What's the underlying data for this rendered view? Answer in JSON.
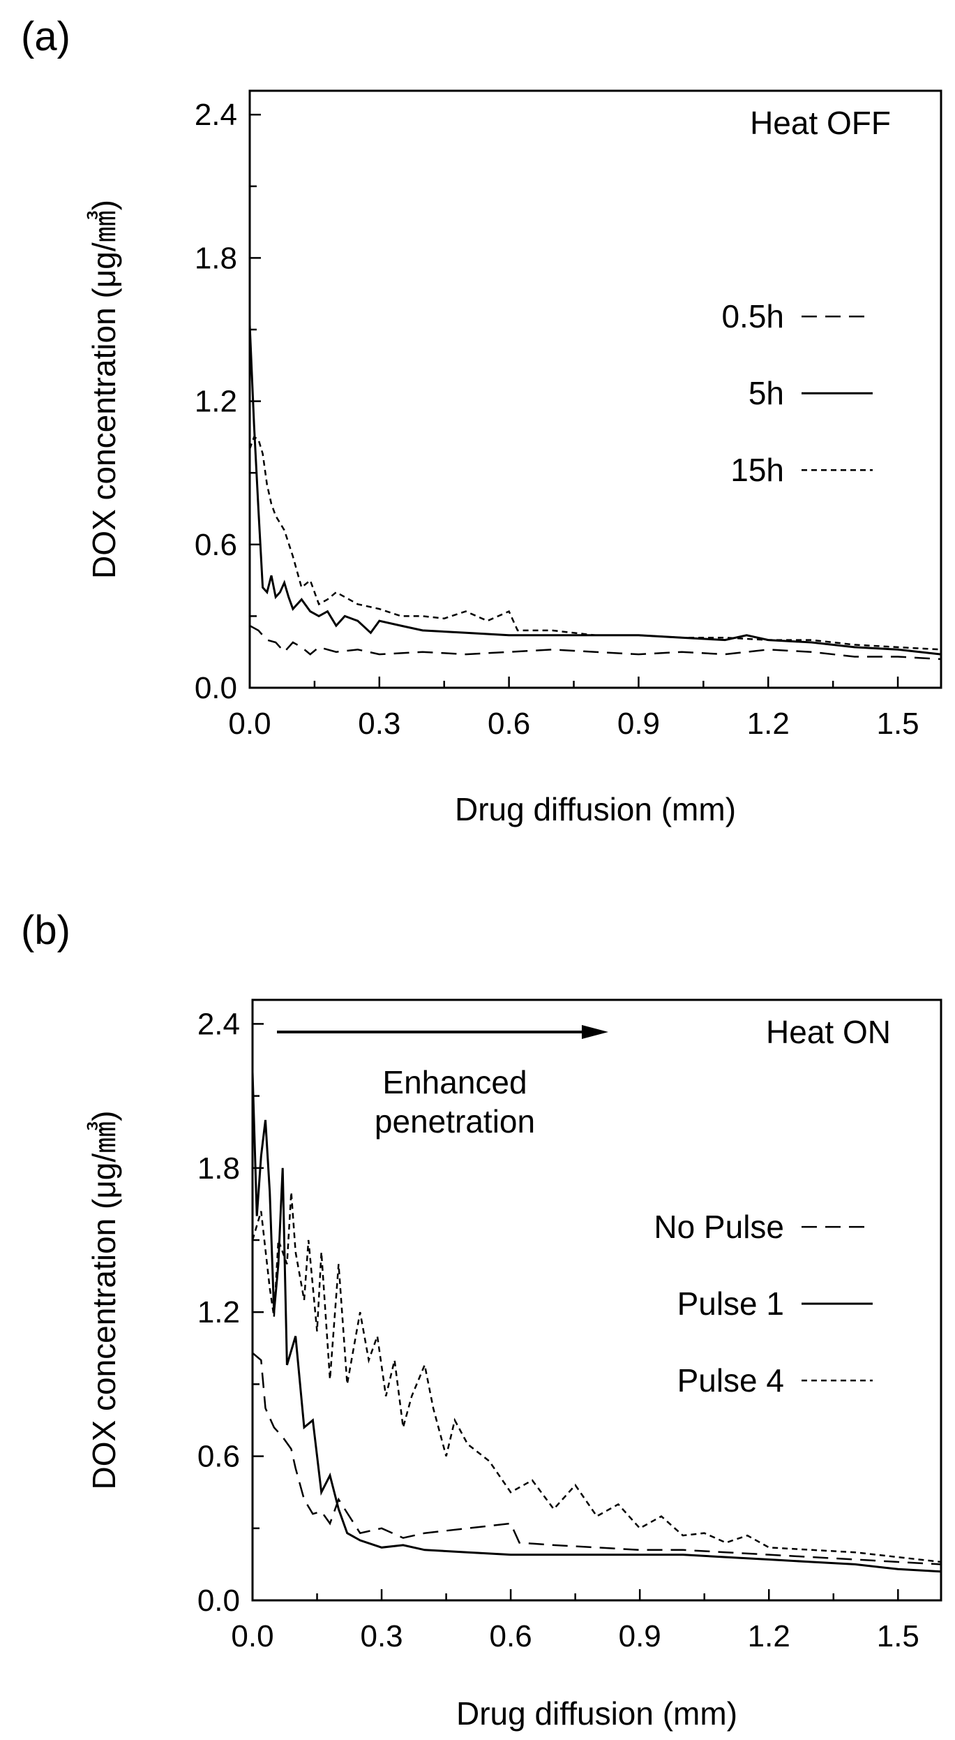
{
  "chart_data": [
    {
      "type": "line",
      "panel_label": "(a)",
      "annotation": "Heat OFF",
      "xlabel": "Drug diffusion (mm)",
      "ylabel": "DOX concentration (μg/㎣)",
      "xlim": [
        0,
        1.6
      ],
      "ylim": [
        0,
        2.5
      ],
      "xticks": [
        "0.0",
        "0.3",
        "0.6",
        "0.9",
        "1.2",
        "1.5"
      ],
      "yticks": [
        "0.0",
        "0.6",
        "1.2",
        "1.8",
        "2.4"
      ],
      "legend_position": "right",
      "series": [
        {
          "name": "0.5h",
          "style": "dashed",
          "x": [
            0,
            0.02,
            0.04,
            0.06,
            0.08,
            0.1,
            0.12,
            0.14,
            0.16,
            0.2,
            0.25,
            0.3,
            0.4,
            0.5,
            0.6,
            0.7,
            0.8,
            0.9,
            1.0,
            1.1,
            1.2,
            1.3,
            1.4,
            1.5,
            1.6
          ],
          "values": [
            0.26,
            0.24,
            0.2,
            0.19,
            0.15,
            0.19,
            0.17,
            0.14,
            0.17,
            0.15,
            0.16,
            0.14,
            0.15,
            0.14,
            0.15,
            0.16,
            0.15,
            0.14,
            0.15,
            0.14,
            0.16,
            0.15,
            0.13,
            0.13,
            0.12
          ]
        },
        {
          "name": "5h",
          "style": "solid",
          "x": [
            0,
            0.01,
            0.02,
            0.03,
            0.04,
            0.05,
            0.06,
            0.07,
            0.08,
            0.09,
            0.1,
            0.12,
            0.14,
            0.16,
            0.18,
            0.2,
            0.22,
            0.25,
            0.28,
            0.3,
            0.35,
            0.4,
            0.5,
            0.6,
            0.7,
            0.8,
            0.9,
            1.0,
            1.1,
            1.15,
            1.2,
            1.3,
            1.4,
            1.5,
            1.6
          ],
          "values": [
            1.52,
            1.1,
            0.75,
            0.42,
            0.4,
            0.47,
            0.38,
            0.4,
            0.44,
            0.38,
            0.33,
            0.37,
            0.32,
            0.3,
            0.32,
            0.26,
            0.3,
            0.28,
            0.23,
            0.28,
            0.26,
            0.24,
            0.23,
            0.22,
            0.22,
            0.22,
            0.22,
            0.21,
            0.2,
            0.22,
            0.2,
            0.19,
            0.17,
            0.16,
            0.14
          ]
        },
        {
          "name": "15h",
          "style": "dotted",
          "x": [
            0,
            0.01,
            0.02,
            0.03,
            0.04,
            0.05,
            0.06,
            0.08,
            0.1,
            0.12,
            0.14,
            0.16,
            0.18,
            0.2,
            0.25,
            0.3,
            0.35,
            0.4,
            0.45,
            0.5,
            0.55,
            0.6,
            0.62,
            0.7,
            0.8,
            0.9,
            1.0,
            1.1,
            1.2,
            1.3,
            1.4,
            1.5,
            1.6
          ],
          "values": [
            1.0,
            1.05,
            1.04,
            0.98,
            0.85,
            0.77,
            0.72,
            0.66,
            0.55,
            0.42,
            0.45,
            0.35,
            0.37,
            0.4,
            0.35,
            0.33,
            0.3,
            0.3,
            0.29,
            0.32,
            0.28,
            0.32,
            0.24,
            0.24,
            0.22,
            0.22,
            0.21,
            0.21,
            0.2,
            0.2,
            0.18,
            0.17,
            0.16
          ]
        }
      ]
    },
    {
      "type": "line",
      "panel_label": "(b)",
      "annotation": "Heat ON",
      "arrow_annotation": [
        "Enhanced",
        "penetration"
      ],
      "xlabel": "Drug diffusion (mm)",
      "ylabel": "DOX concentration (μg/㎣)",
      "xlim": [
        0,
        1.6
      ],
      "ylim": [
        0,
        2.5
      ],
      "xticks": [
        "0.0",
        "0.3",
        "0.6",
        "0.9",
        "1.2",
        "1.5"
      ],
      "yticks": [
        "0.0",
        "0.6",
        "1.2",
        "1.8",
        "2.4"
      ],
      "legend_position": "right",
      "series": [
        {
          "name": "No Pulse",
          "style": "dashed",
          "x": [
            0,
            0.02,
            0.03,
            0.05,
            0.07,
            0.09,
            0.1,
            0.12,
            0.14,
            0.16,
            0.18,
            0.2,
            0.25,
            0.3,
            0.35,
            0.4,
            0.5,
            0.6,
            0.62,
            0.7,
            0.8,
            0.9,
            1.0,
            1.1,
            1.2,
            1.3,
            1.4,
            1.5,
            1.6
          ],
          "values": [
            1.03,
            1.0,
            0.8,
            0.72,
            0.68,
            0.63,
            0.55,
            0.42,
            0.36,
            0.37,
            0.32,
            0.42,
            0.28,
            0.3,
            0.26,
            0.28,
            0.3,
            0.32,
            0.24,
            0.23,
            0.22,
            0.21,
            0.21,
            0.2,
            0.19,
            0.18,
            0.17,
            0.16,
            0.15
          ]
        },
        {
          "name": "Pulse 1",
          "style": "solid",
          "x": [
            0,
            0.01,
            0.02,
            0.03,
            0.04,
            0.05,
            0.06,
            0.07,
            0.08,
            0.1,
            0.12,
            0.14,
            0.16,
            0.18,
            0.2,
            0.22,
            0.25,
            0.3,
            0.35,
            0.4,
            0.5,
            0.6,
            0.7,
            0.8,
            0.9,
            1.0,
            1.1,
            1.2,
            1.3,
            1.4,
            1.5,
            1.6
          ],
          "values": [
            2.2,
            1.6,
            1.85,
            2.0,
            1.7,
            1.2,
            1.4,
            1.8,
            0.98,
            1.1,
            0.72,
            0.75,
            0.45,
            0.52,
            0.38,
            0.28,
            0.25,
            0.22,
            0.23,
            0.21,
            0.2,
            0.19,
            0.19,
            0.19,
            0.19,
            0.19,
            0.18,
            0.17,
            0.16,
            0.15,
            0.13,
            0.12
          ]
        },
        {
          "name": "Pulse 4",
          "style": "dotted",
          "x": [
            0,
            0.02,
            0.04,
            0.05,
            0.06,
            0.08,
            0.09,
            0.1,
            0.12,
            0.13,
            0.15,
            0.16,
            0.18,
            0.2,
            0.22,
            0.25,
            0.27,
            0.29,
            0.31,
            0.33,
            0.35,
            0.37,
            0.4,
            0.42,
            0.45,
            0.47,
            0.5,
            0.55,
            0.6,
            0.65,
            0.7,
            0.75,
            0.8,
            0.85,
            0.9,
            0.95,
            1.0,
            1.05,
            1.1,
            1.15,
            1.2,
            1.3,
            1.4,
            1.5,
            1.6
          ],
          "values": [
            1.5,
            1.62,
            1.3,
            1.18,
            1.5,
            1.4,
            1.7,
            1.45,
            1.25,
            1.5,
            1.12,
            1.45,
            0.92,
            1.4,
            0.9,
            1.2,
            1.0,
            1.1,
            0.85,
            1.0,
            0.72,
            0.85,
            0.98,
            0.8,
            0.6,
            0.75,
            0.65,
            0.58,
            0.45,
            0.5,
            0.38,
            0.48,
            0.35,
            0.4,
            0.3,
            0.35,
            0.27,
            0.28,
            0.24,
            0.27,
            0.22,
            0.21,
            0.2,
            0.18,
            0.16
          ]
        }
      ]
    }
  ]
}
